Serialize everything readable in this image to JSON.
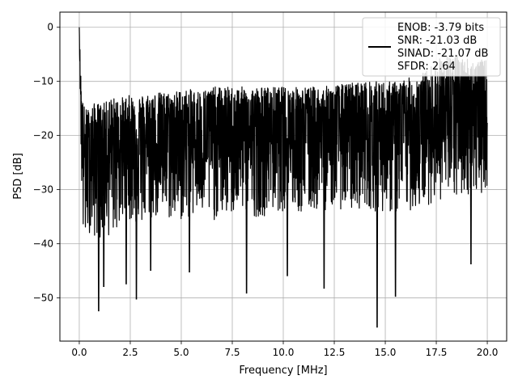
{
  "chart_data": {
    "type": "line",
    "title": "",
    "xlabel": "Frequency [MHz]",
    "ylabel": "PSD [dB]",
    "xlim": [
      -0.95,
      20.95
    ],
    "ylim": [
      -58.0,
      2.8
    ],
    "xticks": [
      0.0,
      2.5,
      5.0,
      7.5,
      10.0,
      12.5,
      15.0,
      17.5,
      20.0
    ],
    "xtick_labels": [
      "0.0",
      "2.5",
      "5.0",
      "7.5",
      "10.0",
      "12.5",
      "15.0",
      "17.5",
      "20.0"
    ],
    "yticks": [
      0,
      -10,
      -20,
      -30,
      -40,
      -50
    ],
    "ytick_labels": [
      "0",
      "−10",
      "−20",
      "−30",
      "−40",
      "−50"
    ],
    "grid": true,
    "legend_position": "top-right",
    "series": [
      {
        "name": "ENOB: -3.79 bits\nSNR: -21.03 dB\nSINAD: -21.07 dB\nSFDR: 2.64",
        "color": "#000000",
        "x": [
          0.0,
          0.05,
          0.1,
          0.15,
          0.2,
          0.3,
          0.5,
          0.75,
          1.0,
          1.25,
          1.5,
          2.0,
          2.5,
          3.0,
          3.5,
          4.0,
          4.5,
          5.0,
          5.5,
          6.0,
          6.5,
          7.0,
          7.5,
          8.0,
          8.5,
          9.0,
          9.5,
          10.0,
          10.5,
          11.0,
          11.5,
          12.0,
          12.5,
          13.0,
          13.5,
          14.0,
          14.5,
          15.0,
          15.5,
          16.0,
          16.5,
          17.0,
          17.5,
          18.0,
          18.5,
          19.0,
          19.5,
          20.0
        ],
        "values": [
          0.0,
          -9.0,
          -16.0,
          -20.0,
          -22.0,
          -25.0,
          -24.0,
          -23.0,
          -23.5,
          -23.0,
          -22.5,
          -22.0,
          -22.0,
          -21.5,
          -21.5,
          -21.0,
          -21.0,
          -21.0,
          -21.0,
          -21.0,
          -21.0,
          -21.0,
          -20.5,
          -20.5,
          -20.5,
          -20.5,
          -20.5,
          -20.5,
          -20.5,
          -20.0,
          -20.0,
          -20.0,
          -20.0,
          -20.0,
          -20.0,
          -20.0,
          -20.0,
          -20.0,
          -20.0,
          -19.5,
          -19.0,
          -18.5,
          -18.0,
          -18.0,
          -17.5,
          -17.0,
          -17.0,
          -17.0
        ],
        "band_top": [
          0.0,
          -6.0,
          -11.0,
          -13.0,
          -14.0,
          -15.0,
          -15.0,
          -14.0,
          -14.0,
          -14.0,
          -13.0,
          -13.0,
          -12.5,
          -12.5,
          -12.0,
          -12.0,
          -12.0,
          -11.5,
          -11.5,
          -11.5,
          -11.0,
          -11.0,
          -11.0,
          -11.0,
          -11.0,
          -11.0,
          -11.0,
          -11.0,
          -11.0,
          -11.0,
          -11.0,
          -11.0,
          -10.5,
          -10.5,
          -10.0,
          -10.0,
          -10.0,
          -10.0,
          -10.0,
          -9.5,
          -9.0,
          -8.0,
          -6.0,
          -5.0,
          -5.0,
          -5.5,
          -6.0,
          -6.0
        ],
        "band_bottom": [
          0.0,
          -15.0,
          -28.0,
          -36.0,
          -41.0,
          -40.0,
          -38.0,
          -39.0,
          -40.0,
          -38.0,
          -39.0,
          -37.0,
          -36.0,
          -37.0,
          -36.0,
          -35.0,
          -36.0,
          -36.0,
          -35.0,
          -35.0,
          -36.0,
          -35.0,
          -35.0,
          -34.0,
          -35.0,
          -35.0,
          -34.0,
          -34.0,
          -34.0,
          -35.0,
          -34.0,
          -34.0,
          -33.0,
          -34.0,
          -34.0,
          -33.0,
          -34.0,
          -34.0,
          -35.0,
          -34.0,
          -34.0,
          -33.0,
          -32.0,
          -32.0,
          -32.0,
          -31.0,
          -31.0,
          -30.0
        ],
        "deep_dips": [
          {
            "x": 0.95,
            "y": -52.5
          },
          {
            "x": 1.2,
            "y": -48.0
          },
          {
            "x": 2.3,
            "y": -47.5
          },
          {
            "x": 2.8,
            "y": -50.3
          },
          {
            "x": 3.5,
            "y": -45.0
          },
          {
            "x": 5.4,
            "y": -45.3
          },
          {
            "x": 8.2,
            "y": -49.2
          },
          {
            "x": 10.2,
            "y": -46.0
          },
          {
            "x": 12.0,
            "y": -48.3
          },
          {
            "x": 14.6,
            "y": -55.5
          },
          {
            "x": 15.5,
            "y": -49.8
          },
          {
            "x": 19.2,
            "y": -43.8
          }
        ]
      }
    ]
  }
}
